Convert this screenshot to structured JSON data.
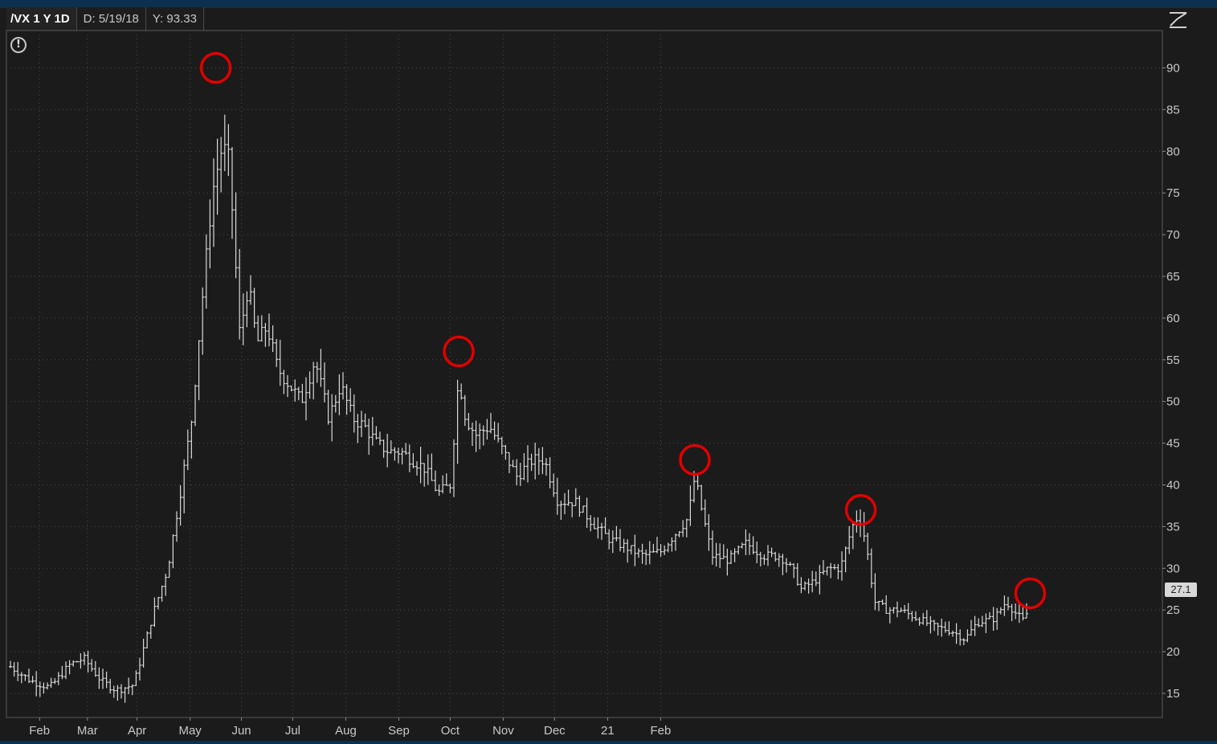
{
  "header": {
    "symbol": "/VX 1 Y 1D",
    "date_readout": "D: 5/19/18",
    "value_readout": "Y: 93.33"
  },
  "last_price": "27.1",
  "icons": {
    "alert": "alert-circle-icon",
    "style": "chart-style-icon"
  },
  "colors": {
    "background": "#1b1b1b",
    "bars": "#d9d9d9",
    "highlight": "#e00000",
    "grid": "#4a4a4a",
    "axis_text": "#c8c8c8"
  },
  "chart_data": {
    "type": "ohlc",
    "title": "",
    "xlabel": "",
    "ylabel": "",
    "ylim": [
      12,
      95
    ],
    "y_axis_position": "right",
    "yticks": [
      15,
      20,
      25,
      30,
      35,
      40,
      45,
      50,
      55,
      60,
      65,
      70,
      75,
      80,
      85,
      90
    ],
    "grid": true,
    "x_tick_labels": [
      "Feb",
      "Mar",
      "Apr",
      "May",
      "Jun",
      "Jul",
      "Aug",
      "Sep",
      "Oct",
      "Nov",
      "Dec",
      "21",
      "Feb"
    ],
    "trend": [
      [
        0,
        18.2
      ],
      [
        12,
        16.5
      ],
      [
        23,
        15.7
      ],
      [
        35,
        18.5
      ],
      [
        43,
        19.2
      ],
      [
        53,
        16.5
      ],
      [
        62,
        15.4
      ],
      [
        72,
        16.0
      ],
      [
        78,
        20.5
      ],
      [
        84,
        25
      ],
      [
        92,
        30
      ],
      [
        100,
        40
      ],
      [
        106,
        48
      ],
      [
        112,
        62
      ],
      [
        118,
        75
      ],
      [
        123,
        80
      ],
      [
        127,
        80
      ],
      [
        130,
        72
      ],
      [
        134,
        58
      ],
      [
        139,
        64
      ],
      [
        144,
        57
      ],
      [
        150,
        59
      ],
      [
        156,
        54
      ],
      [
        163,
        52
      ],
      [
        170,
        50
      ],
      [
        178,
        55
      ],
      [
        186,
        48
      ],
      [
        193,
        52
      ],
      [
        200,
        48
      ],
      [
        207,
        47
      ],
      [
        214,
        45
      ],
      [
        221,
        44
      ],
      [
        228,
        44
      ],
      [
        235,
        43
      ],
      [
        242,
        42
      ],
      [
        250,
        39
      ],
      [
        257,
        40
      ],
      [
        262,
        53
      ],
      [
        266,
        48
      ],
      [
        272,
        46
      ],
      [
        280,
        47
      ],
      [
        288,
        44
      ],
      [
        296,
        41
      ],
      [
        305,
        43
      ],
      [
        312,
        43
      ],
      [
        320,
        38
      ],
      [
        330,
        38
      ],
      [
        340,
        35.5
      ],
      [
        350,
        33.5
      ],
      [
        360,
        32.5
      ],
      [
        370,
        31.5
      ],
      [
        380,
        32
      ],
      [
        390,
        34.5
      ],
      [
        396,
        36
      ],
      [
        400,
        41
      ],
      [
        404,
        37
      ],
      [
        410,
        31.5
      ],
      [
        420,
        31
      ],
      [
        430,
        33
      ],
      [
        440,
        31.5
      ],
      [
        450,
        31.5
      ],
      [
        458,
        29.5
      ],
      [
        462,
        27.5
      ],
      [
        470,
        28.5
      ],
      [
        478,
        30
      ],
      [
        485,
        30
      ],
      [
        492,
        35
      ],
      [
        496,
        36.5
      ],
      [
        500,
        33
      ],
      [
        505,
        26
      ],
      [
        512,
        25
      ],
      [
        520,
        25
      ],
      [
        530,
        24
      ],
      [
        540,
        23
      ],
      [
        550,
        22.5
      ],
      [
        558,
        21.5
      ],
      [
        565,
        23.5
      ],
      [
        575,
        24
      ],
      [
        582,
        26
      ],
      [
        588,
        24.5
      ],
      [
        593,
        23.5
      ],
      [
        596,
        27
      ]
    ],
    "dense_bars": true,
    "annotations": [
      {
        "type": "circle",
        "label": "highlight-peak-mar",
        "x": 120,
        "y": 90
      },
      {
        "type": "circle",
        "label": "highlight-peak-jun",
        "x": 262,
        "y": 56
      },
      {
        "type": "circle",
        "label": "highlight-peak-sep",
        "x": 400,
        "y": 43
      },
      {
        "type": "circle",
        "label": "highlight-peak-nov",
        "x": 497,
        "y": 37
      },
      {
        "type": "circle",
        "label": "highlight-last",
        "x": 596,
        "y": 27
      }
    ]
  }
}
